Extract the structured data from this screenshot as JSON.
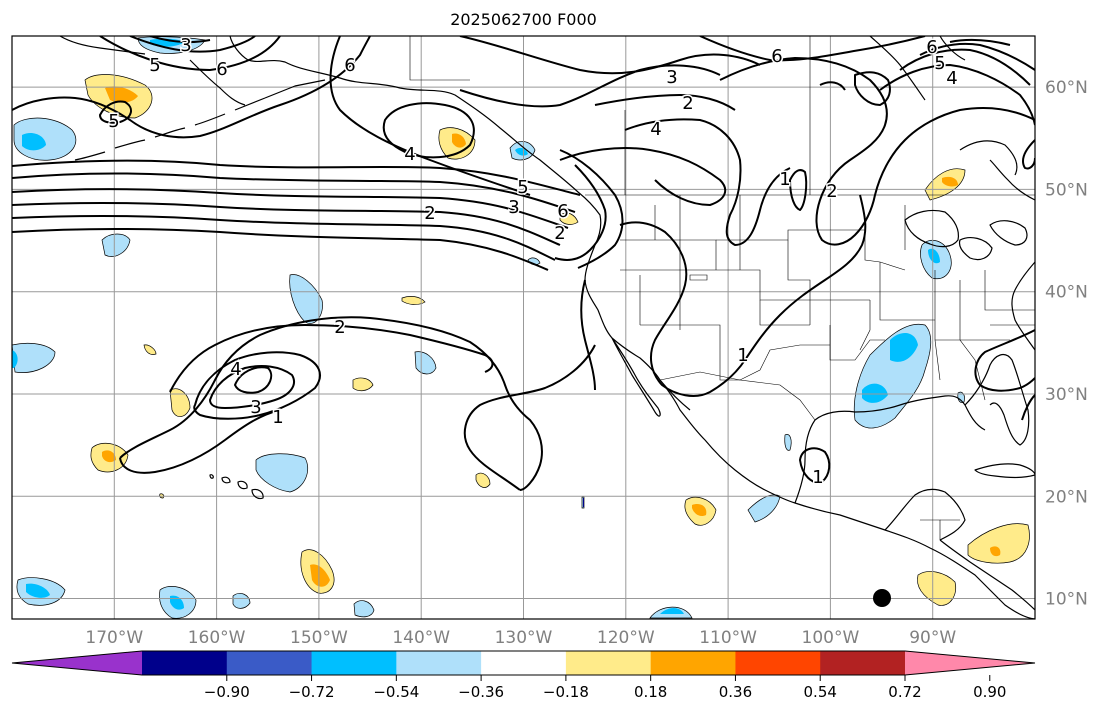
{
  "title": "2025062700 F000",
  "map": {
    "lon_range": [
      -180,
      -80
    ],
    "lat_range": [
      8,
      65
    ],
    "lat_labels": [
      "10°N",
      "20°N",
      "30°N",
      "40°N",
      "50°N",
      "60°N"
    ],
    "lon_labels": [
      "170°W",
      "160°W",
      "150°W",
      "140°W",
      "130°W",
      "120°W",
      "110°W",
      "100°W",
      "90°W"
    ],
    "contour_labels": [
      "5",
      "6",
      "6",
      "3",
      "5",
      "4",
      "6",
      "6",
      "5",
      "4",
      "3",
      "2",
      "4",
      "2",
      "2",
      "1",
      "5",
      "3",
      "6",
      "2",
      "4",
      "3",
      "1",
      "1",
      "1",
      "2"
    ],
    "colors": {
      "grid": "#999999",
      "coast": "#000000",
      "contour": "#000000",
      "axis_labels": "#808080"
    }
  },
  "colorbar": {
    "colors": [
      "#9932cc",
      "#00008b",
      "#3a5bc7",
      "#00bfff",
      "#afe0fa",
      "#ffffff",
      "#ffeb8a",
      "#ffa500",
      "#ff4500",
      "#b22222",
      "#ff88aa"
    ],
    "tick_labels": [
      "−0.90",
      "−0.72",
      "−0.54",
      "−0.36",
      "−0.18",
      "0.18",
      "0.36",
      "0.54",
      "0.72",
      "0.90"
    ]
  }
}
